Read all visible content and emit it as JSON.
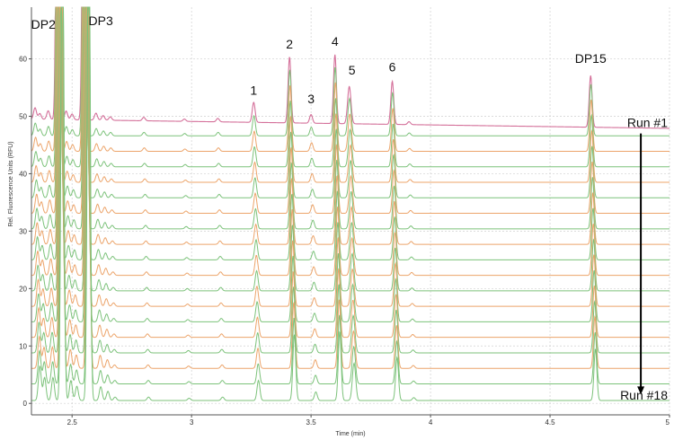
{
  "chart_data": {
    "type": "line",
    "title": "",
    "xlabel": "Time (min)",
    "ylabel": "Rel. Fluorescence Units (RFU)",
    "xlim": [
      2.33,
      5.0
    ],
    "ylim": [
      -2,
      69
    ],
    "x_ticks": [
      2.5,
      3,
      3.5,
      4,
      4.5,
      5
    ],
    "x_tick_labels": [
      "2.5",
      "3",
      "3.5",
      "4",
      "4.5",
      "5"
    ],
    "y_ticks": [
      0,
      10,
      20,
      30,
      40,
      50,
      60
    ],
    "y_tick_labels": [
      "0",
      "10",
      "20",
      "30",
      "40",
      "50",
      "60"
    ],
    "grid": true,
    "colors": {
      "run1": "#d4709a",
      "green": "#7cc27a",
      "orange": "#eca46a",
      "axis": "#555555",
      "grid": "#d0d0d0"
    },
    "peaks": [
      {
        "label": "DP2",
        "time": 2.44
      },
      {
        "label": "DP3",
        "time": 2.55
      },
      {
        "label": "1",
        "time": 3.26,
        "height_run1": 3.5
      },
      {
        "label": "2",
        "time": 3.41,
        "height_run1": 11.5
      },
      {
        "label": "3",
        "time": 3.5,
        "height_run1": 1.5
      },
      {
        "label": "4",
        "time": 3.6,
        "height_run1": 12
      },
      {
        "label": "5",
        "time": 3.66,
        "height_run1": 6.5
      },
      {
        "label": "6",
        "time": 3.84,
        "height_run1": 7.5
      },
      {
        "label": "DP15",
        "time": 4.67,
        "height_run1": 9
      }
    ],
    "series": [
      {
        "baseline": 49.5,
        "color_key": "run1"
      },
      {
        "baseline": 46.6,
        "color_key": "green"
      },
      {
        "baseline": 43.9,
        "color_key": "orange"
      },
      {
        "baseline": 41.2,
        "color_key": "green"
      },
      {
        "baseline": 38.5,
        "color_key": "orange"
      },
      {
        "baseline": 35.8,
        "color_key": "green"
      },
      {
        "baseline": 33.1,
        "color_key": "orange"
      },
      {
        "baseline": 30.4,
        "color_key": "green"
      },
      {
        "baseline": 27.7,
        "color_key": "orange"
      },
      {
        "baseline": 25.0,
        "color_key": "green"
      },
      {
        "baseline": 22.3,
        "color_key": "orange"
      },
      {
        "baseline": 19.6,
        "color_key": "green"
      },
      {
        "baseline": 16.9,
        "color_key": "orange"
      },
      {
        "baseline": 14.2,
        "color_key": "green"
      },
      {
        "baseline": 11.5,
        "color_key": "orange"
      },
      {
        "baseline": 8.8,
        "color_key": "green"
      },
      {
        "baseline": 6.1,
        "color_key": "orange"
      },
      {
        "baseline": 3.4,
        "color_key": "green"
      },
      {
        "baseline": 0.5,
        "color_key": "green"
      }
    ],
    "annotations": {
      "run_start": "Run #1",
      "run_end": "Run #18",
      "arrow_time": 4.88
    }
  }
}
